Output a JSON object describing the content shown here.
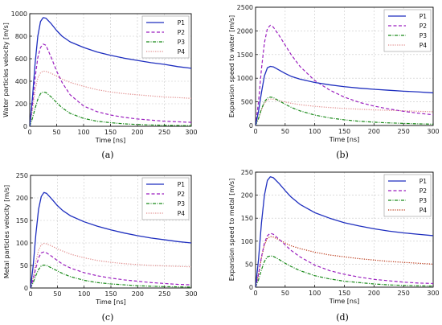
{
  "chart_data": [
    {
      "type": "line",
      "caption": "(a)",
      "xlabel": "Time [ns]",
      "ylabel": "Water particles velocity [m/s]",
      "xlim": [
        0,
        300
      ],
      "ylim": [
        0,
        1000
      ],
      "xticks": [
        0,
        50,
        100,
        150,
        200,
        250,
        300
      ],
      "yticks": [
        0,
        200,
        400,
        600,
        800,
        1000
      ],
      "grid": true,
      "legend": "top-right",
      "x": [
        0,
        5,
        10,
        15,
        20,
        25,
        30,
        40,
        50,
        60,
        75,
        100,
        125,
        150,
        175,
        200,
        225,
        250,
        275,
        300
      ],
      "series": [
        {
          "name": "P1",
          "color": "#1f2fbf",
          "dash": "solid",
          "values": [
            0,
            250,
            560,
            800,
            930,
            965,
            960,
            910,
            850,
            800,
            750,
            700,
            660,
            630,
            605,
            585,
            565,
            550,
            530,
            515
          ]
        },
        {
          "name": "P2",
          "color": "#9b1fbf",
          "dash": "dashed",
          "values": [
            0,
            190,
            430,
            610,
            700,
            730,
            720,
            610,
            490,
            390,
            280,
            180,
            130,
            100,
            80,
            65,
            55,
            45,
            40,
            35
          ]
        },
        {
          "name": "P3",
          "color": "#1a8a1a",
          "dash": "dashdot",
          "values": [
            0,
            70,
            160,
            240,
            290,
            305,
            300,
            260,
            210,
            165,
            115,
            70,
            45,
            32,
            22,
            16,
            12,
            9,
            7,
            5
          ]
        },
        {
          "name": "P4",
          "color": "#e08a8a",
          "dash": "dotted",
          "values": [
            0,
            140,
            320,
            430,
            475,
            490,
            488,
            470,
            445,
            420,
            390,
            355,
            325,
            305,
            290,
            280,
            270,
            260,
            255,
            248
          ]
        }
      ]
    },
    {
      "type": "line",
      "caption": "(b)",
      "xlabel": "Time [ns]",
      "ylabel": "Expansion speed to water [m/s]",
      "xlim": [
        0,
        300
      ],
      "ylim": [
        0,
        2500
      ],
      "xticks": [
        0,
        50,
        100,
        150,
        200,
        250,
        300
      ],
      "yticks": [
        0,
        500,
        1000,
        1500,
        2000,
        2500
      ],
      "grid": true,
      "legend": "top-right",
      "x": [
        0,
        5,
        10,
        15,
        20,
        25,
        30,
        40,
        50,
        60,
        75,
        100,
        125,
        150,
        175,
        200,
        225,
        250,
        275,
        300
      ],
      "series": [
        {
          "name": "P1",
          "color": "#1f2fbf",
          "dash": "solid",
          "values": [
            0,
            300,
            700,
            1050,
            1220,
            1250,
            1240,
            1170,
            1100,
            1040,
            980,
            910,
            860,
            820,
            790,
            765,
            745,
            725,
            710,
            690
          ]
        },
        {
          "name": "P2",
          "color": "#9b1fbf",
          "dash": "dashed",
          "values": [
            0,
            500,
            1200,
            1750,
            2050,
            2120,
            2080,
            1900,
            1700,
            1500,
            1250,
            950,
            750,
            600,
            490,
            410,
            350,
            300,
            260,
            225
          ]
        },
        {
          "name": "P3",
          "color": "#1a8a1a",
          "dash": "dashdot",
          "values": [
            0,
            150,
            350,
            500,
            580,
            600,
            590,
            520,
            450,
            385,
            310,
            220,
            160,
            120,
            90,
            70,
            55,
            45,
            35,
            28
          ]
        },
        {
          "name": "P4",
          "color": "#e08a8a",
          "dash": "dotted",
          "values": [
            0,
            140,
            330,
            470,
            540,
            560,
            555,
            525,
            495,
            470,
            440,
            405,
            380,
            360,
            345,
            330,
            320,
            310,
            300,
            290
          ]
        }
      ]
    },
    {
      "type": "line",
      "caption": "(c)",
      "xlabel": "Time [ns]",
      "ylabel": "Metal particles velocity [m/s]",
      "xlim": [
        0,
        300
      ],
      "ylim": [
        0,
        250
      ],
      "xticks": [
        0,
        50,
        100,
        150,
        200,
        250,
        300
      ],
      "yticks": [
        0,
        50,
        100,
        150,
        200,
        250
      ],
      "grid": true,
      "legend": "top-right",
      "x": [
        0,
        5,
        10,
        15,
        20,
        25,
        30,
        40,
        50,
        60,
        75,
        100,
        125,
        150,
        175,
        200,
        225,
        250,
        275,
        300
      ],
      "series": [
        {
          "name": "P1",
          "color": "#1f2fbf",
          "dash": "solid",
          "values": [
            0,
            50,
            120,
            175,
            203,
            212,
            210,
            197,
            183,
            172,
            160,
            147,
            137,
            129,
            122,
            116,
            111,
            107,
            103,
            100
          ]
        },
        {
          "name": "P2",
          "color": "#9b1fbf",
          "dash": "dashed",
          "values": [
            0,
            20,
            45,
            67,
            78,
            80,
            78,
            70,
            61,
            53,
            44,
            34,
            27,
            22,
            18,
            15,
            12,
            10,
            8,
            7
          ]
        },
        {
          "name": "P3",
          "color": "#1a8a1a",
          "dash": "dashdot",
          "values": [
            0,
            12,
            28,
            41,
            49,
            51,
            50,
            44,
            38,
            32,
            25,
            17,
            12,
            9,
            7,
            5,
            4,
            3,
            2.5,
            2
          ]
        },
        {
          "name": "P4",
          "color": "#e08a8a",
          "dash": "dotted",
          "values": [
            0,
            24,
            58,
            84,
            96,
            99,
            98,
            93,
            87,
            82,
            75,
            67,
            61,
            57,
            54,
            52,
            50,
            49,
            48,
            47
          ]
        }
      ]
    },
    {
      "type": "line",
      "caption": "(d)",
      "xlabel": "Time [ns]",
      "ylabel": "Expansion speed to metal [m/s]",
      "xlim": [
        0,
        300
      ],
      "ylim": [
        0,
        250
      ],
      "xticks": [
        0,
        50,
        100,
        150,
        200,
        250,
        300
      ],
      "yticks": [
        0,
        50,
        100,
        150,
        200,
        250
      ],
      "grid": true,
      "legend": "top-right",
      "x": [
        0,
        5,
        10,
        15,
        20,
        25,
        30,
        40,
        50,
        60,
        75,
        100,
        125,
        150,
        175,
        200,
        225,
        250,
        275,
        300
      ],
      "series": [
        {
          "name": "P1",
          "color": "#1f2fbf",
          "dash": "solid",
          "values": [
            0,
            60,
            140,
            200,
            232,
            240,
            238,
            225,
            210,
            196,
            180,
            162,
            150,
            140,
            133,
            127,
            122,
            118,
            115,
            112
          ]
        },
        {
          "name": "P2",
          "color": "#9b1fbf",
          "dash": "dashed",
          "values": [
            0,
            28,
            66,
            96,
            112,
            117,
            115,
            104,
            92,
            80,
            66,
            48,
            36,
            28,
            22,
            17,
            14,
            11,
            9,
            8
          ]
        },
        {
          "name": "P3",
          "color": "#1a8a1a",
          "dash": "dashdot",
          "values": [
            0,
            16,
            38,
            56,
            66,
            68,
            67,
            60,
            52,
            45,
            36,
            25,
            18,
            13,
            10,
            7,
            5,
            4,
            3,
            2.5
          ]
        },
        {
          "name": "P4",
          "color": "#b8310f",
          "dash": "dotted",
          "values": [
            0,
            28,
            64,
            92,
            106,
            110,
            109,
            103,
            96,
            90,
            84,
            76,
            70,
            66,
            62,
            59,
            56,
            54,
            52,
            50
          ]
        }
      ]
    }
  ]
}
